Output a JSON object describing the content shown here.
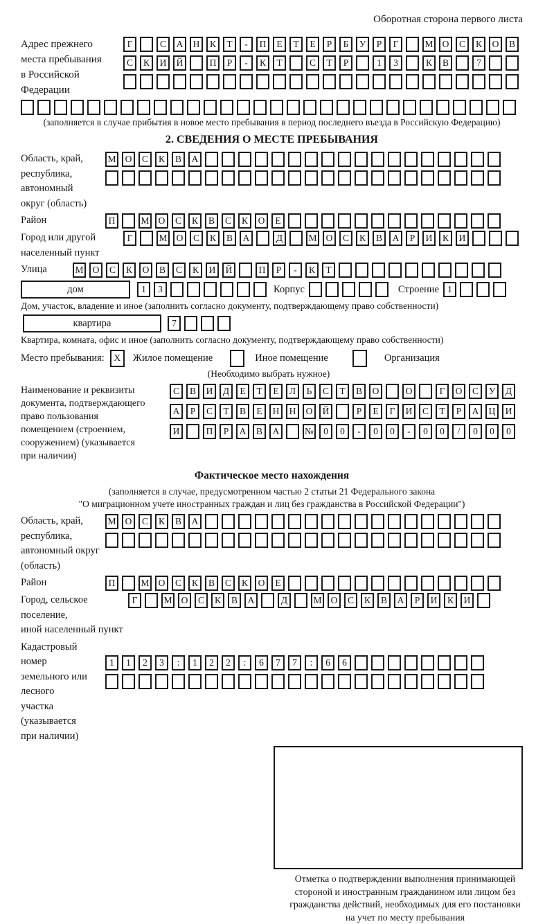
{
  "header": {
    "note": "Оборотная сторона первого листа"
  },
  "prev_address": {
    "label": "Адрес прежнего\nместа пребывания\nв Российской\nФедерации",
    "row1": "Г САНКТ-ПЕТЕРБУРГ МОСКОВ",
    "row2": "СКИЙ ПР-КТ СТР 13 КВ 7  ",
    "row3": "                        ",
    "row4": "                              ",
    "caption": "(заполняется в случае прибытия в новое место пребывания в период последнего въезда в Российскую Федерацию)"
  },
  "section2": {
    "title": "2. СВЕДЕНИЯ О МЕСТЕ ПРЕБЫВАНИЯ",
    "region": {
      "label": "Область, край,\nреспублика,\nавтономный\nокруг (область)",
      "row1": "МОСКВА                  ",
      "row2": "                        "
    },
    "district": {
      "label": "Район",
      "row": "П МОСКВСКОЕ             "
    },
    "city": {
      "label": "Город или другой\nнаселенный пункт",
      "row": "Г МОСКВА Д МОСКВАРИКИ   "
    },
    "street": {
      "label": "Улица",
      "row": "МОСКОВСКИЙ ПР-КТ          "
    },
    "house": {
      "box_label": "дом",
      "number": "13      ",
      "korpus_label": "Корпус",
      "korpus": "     ",
      "stroenie_label": "Строение",
      "stroenie": "1   ",
      "caption": "Дом, участок, владение и иное (заполнить согласно документу, подтверждающему право собственности)"
    },
    "apartment": {
      "box_label": "квартира",
      "number": "7   ",
      "caption": "Квартира, комната, офис и иное (заполнить согласно документу, подтверждающему право собственности)"
    },
    "stay_type": {
      "label": "Место пребывания:",
      "options": [
        {
          "checked": "X",
          "label": "Жилое помещение"
        },
        {
          "checked": "",
          "label": "Иное помещение"
        },
        {
          "checked": "",
          "label": "Организация"
        }
      ],
      "hint": "(Необходимо выбрать нужное)"
    },
    "document": {
      "label": "Наименование и реквизиты\nдокумента, подтверждающего\nправо пользования\nпомещением (строением,\nсооружением) (указывается\nпри наличии)",
      "row1": "СВИДЕТЕЛЬСТВО О ГОСУД",
      "row2": "АРСТВЕННОЙ РЕГИСТРАЦИ",
      "row3": "И ПРАВА №00-00-00/000"
    }
  },
  "actual_location": {
    "title": "Фактическое место нахождения",
    "caption1": "(заполняется в случае, предусмотренном частью 2 статьи 21 Федерального закона",
    "caption2": "\"О миграционном учете иностранных граждан и лиц без гражданства в Российской Федерации\")",
    "region": {
      "label": "Область, край,\nреспублика,\nавтономный округ\n(область)",
      "row1": "МОСКВА                  ",
      "row2": "                        "
    },
    "district": {
      "label": "Район",
      "row": "П МОСКВСКОЕ             "
    },
    "city": {
      "label": "Город, сельское поселение,\nиной населенный пункт",
      "row": "Г МОСКВА Д МОСКВАРИКИ "
    },
    "cadastre": {
      "label": "Кадастровый номер\nземельного или лесного\nучастка (указывается\nпри наличии)",
      "row1": "1123:122:677:66        ",
      "row2": "                       "
    }
  },
  "stamp": {
    "note": "Отметка о подтверждении выполнения принимающей\nстороной и иностранным гражданином или лицом без\nгражданства действий, необходимых для его постановки\nна учет по месту пребывания"
  }
}
